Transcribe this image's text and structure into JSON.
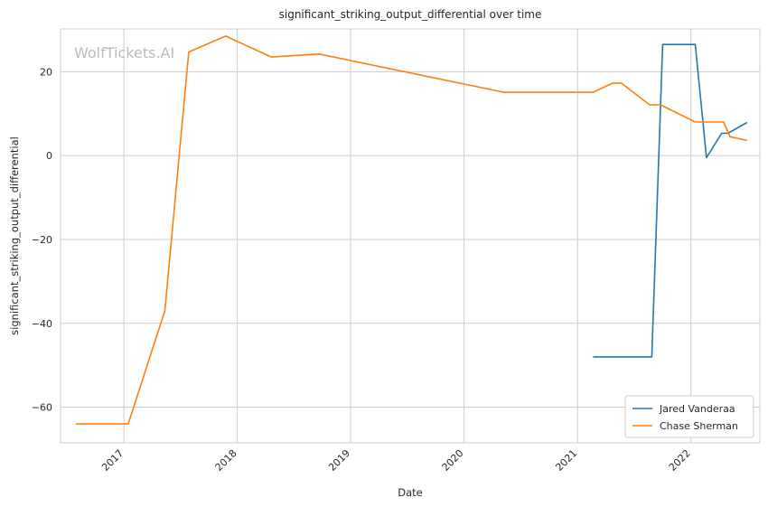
{
  "chart_data": {
    "type": "line",
    "title": "significant_striking_output_differential over time",
    "xlabel": "Date",
    "ylabel": "significant_striking_output_differential",
    "watermark": "WolfTickets.AI",
    "x_ticks": [
      "2017",
      "2018",
      "2019",
      "2020",
      "2021",
      "2022"
    ],
    "y_ticks": [
      -60,
      -40,
      -20,
      0,
      20
    ],
    "xlim": [
      "2016-06-11",
      "2022-08-11"
    ],
    "ylim": [
      -68.5,
      30.2
    ],
    "grid": true,
    "legend_position": "lower-right",
    "series": [
      {
        "name": "Jared Vanderaa",
        "color": "#1f77b4",
        "points": [
          [
            "2021-02-20",
            -48
          ],
          [
            "2021-08-28",
            -48
          ],
          [
            "2021-10-02",
            26.5
          ],
          [
            "2022-01-15",
            26.5
          ],
          [
            "2022-02-20",
            -0.5
          ],
          [
            "2022-04-10",
            5.3
          ],
          [
            "2022-04-30",
            5.3
          ],
          [
            "2022-07-01",
            7.9
          ]
        ]
      },
      {
        "name": "Chase Sherman",
        "color": "#ff7f0e",
        "points": [
          [
            "2016-07-30",
            -64
          ],
          [
            "2017-01-15",
            -64
          ],
          [
            "2017-05-13",
            -37
          ],
          [
            "2017-07-29",
            24.7
          ],
          [
            "2017-11-25",
            28.5
          ],
          [
            "2018-04-21",
            23.5
          ],
          [
            "2018-09-22",
            24.2
          ],
          [
            "2020-05-09",
            15.1
          ],
          [
            "2021-02-20",
            15.1
          ],
          [
            "2021-04-24",
            17.3
          ],
          [
            "2021-05-22",
            17.3
          ],
          [
            "2021-08-21",
            12.1
          ],
          [
            "2021-09-25",
            12.1
          ],
          [
            "2022-01-15",
            8
          ],
          [
            "2022-04-16",
            8
          ],
          [
            "2022-05-07",
            4.5
          ],
          [
            "2022-07-01",
            3.6
          ]
        ]
      }
    ]
  }
}
